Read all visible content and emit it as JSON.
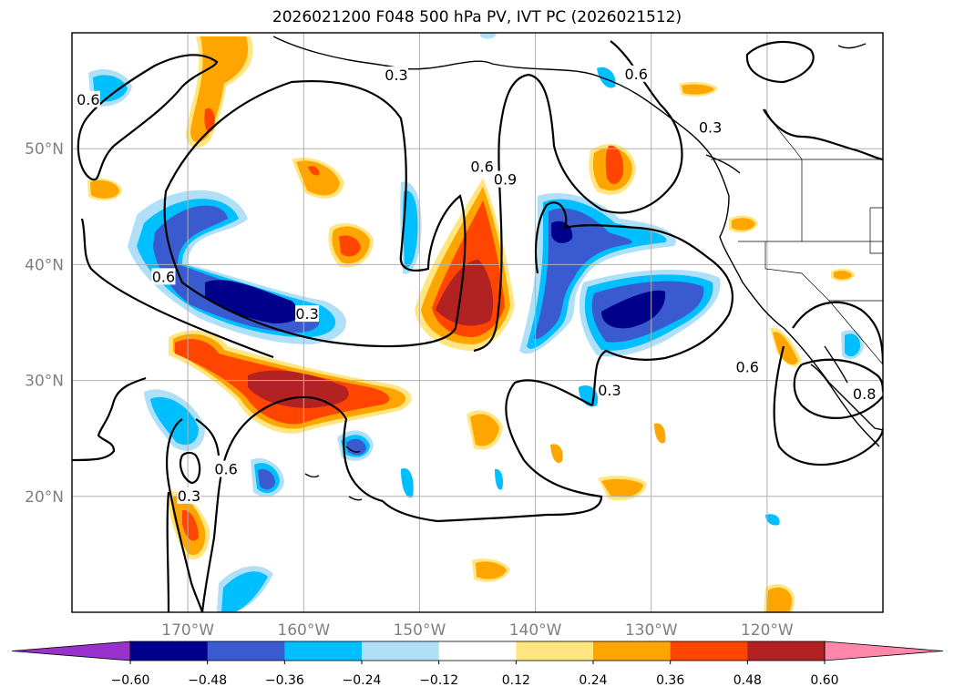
{
  "title": "2026021200 F048 500 hPa PV, IVT PC (2026021512)",
  "map": {
    "projection": "PlateCarree",
    "lon_range": [
      -180,
      -110
    ],
    "lat_range": [
      10,
      60
    ],
    "gridlines": true,
    "x_ticks": [
      {
        "lon": -170,
        "label": "170°W"
      },
      {
        "lon": -160,
        "label": "160°W"
      },
      {
        "lon": -150,
        "label": "150°W"
      },
      {
        "lon": -140,
        "label": "140°W"
      },
      {
        "lon": -130,
        "label": "130°W"
      },
      {
        "lon": -120,
        "label": "120°W"
      }
    ],
    "y_ticks": [
      {
        "lat": 20,
        "label": "20°N"
      },
      {
        "lat": 30,
        "label": "30°N"
      },
      {
        "lat": 40,
        "label": "40°N"
      },
      {
        "lat": 50,
        "label": "50°N"
      }
    ],
    "contour_labels": [
      {
        "text": "0.6",
        "lon": -178.6,
        "lat": 54.2
      },
      {
        "text": "0.3",
        "lon": -152.0,
        "lat": 56.3
      },
      {
        "text": "0.6",
        "lon": -144.6,
        "lat": 48.4
      },
      {
        "text": "0.9",
        "lon": -142.6,
        "lat": 47.3
      },
      {
        "text": "0.6",
        "lon": -172.1,
        "lat": 38.9
      },
      {
        "text": "0.3",
        "lon": -159.7,
        "lat": 35.7
      },
      {
        "text": "0.3",
        "lon": -133.6,
        "lat": 29.1
      },
      {
        "text": "0.6",
        "lon": -131.3,
        "lat": 56.4
      },
      {
        "text": "0.3",
        "lon": -124.9,
        "lat": 51.8
      },
      {
        "text": "0.6",
        "lon": -121.7,
        "lat": 31.1
      },
      {
        "text": "0.8",
        "lon": -111.6,
        "lat": 28.8
      },
      {
        "text": "0.6",
        "lon": -166.7,
        "lat": 22.3
      },
      {
        "text": "0.3",
        "lon": -169.9,
        "lat": 20.0
      }
    ]
  },
  "colorbar": {
    "extend": "both",
    "bounds": [
      -0.6,
      -0.48,
      -0.36,
      -0.24,
      -0.12,
      0.12,
      0.24,
      0.36,
      0.48,
      0.6
    ],
    "colors": [
      "#9932cc",
      "#00008b",
      "#3a5bd0",
      "#00bfff",
      "#b0e0f8",
      "#ffffff",
      "#ffe680",
      "#ffa500",
      "#ff4500",
      "#b22222",
      "#ff88aa"
    ],
    "tick_labels": [
      "−0.60",
      "−0.48",
      "−0.36",
      "−0.24",
      "−0.12",
      "0.12",
      "0.24",
      "0.36",
      "0.48",
      "0.60"
    ]
  }
}
